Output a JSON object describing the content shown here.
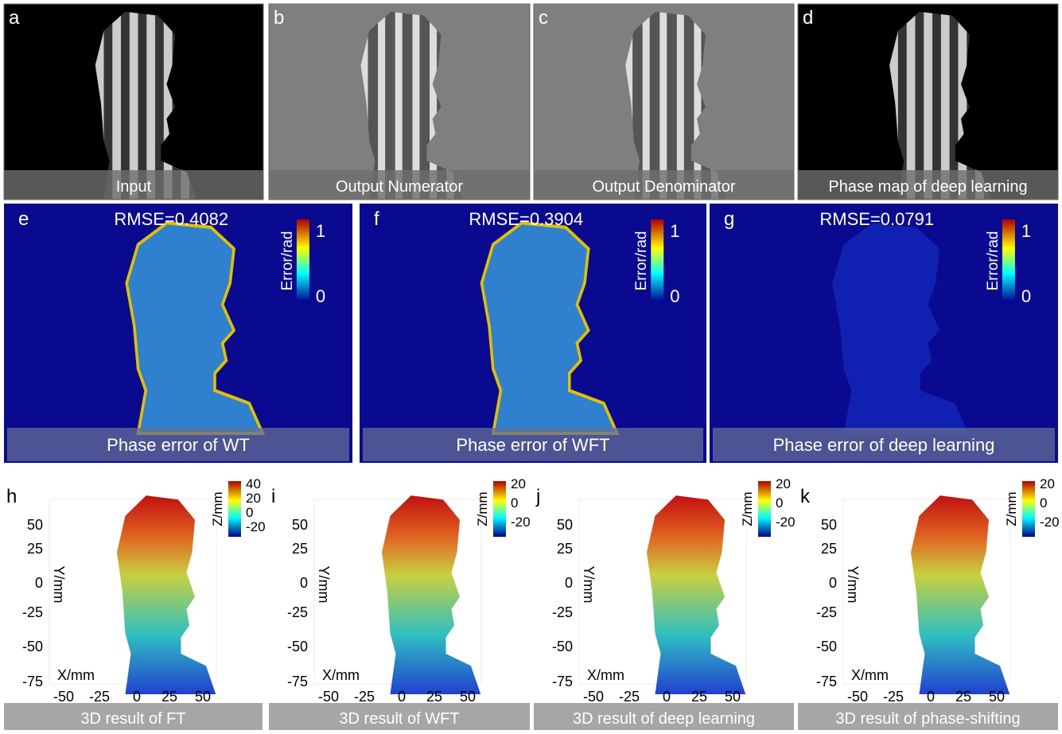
{
  "row1": [
    {
      "letter": "a",
      "caption": "Input"
    },
    {
      "letter": "b",
      "caption": "Output Numerator"
    },
    {
      "letter": "c",
      "caption": "Output Denominator"
    },
    {
      "letter": "d",
      "caption": "Phase map of deep learning"
    }
  ],
  "row2": [
    {
      "letter": "e",
      "rmse": "RMSE=0.4082",
      "caption": "Phase error of WT",
      "colorbar_label": "Error/rad",
      "colorbar_ticks": [
        "1",
        "0"
      ]
    },
    {
      "letter": "f",
      "rmse": "RMSE=0.3904",
      "caption": "Phase error of WFT",
      "colorbar_label": "Error/rad",
      "colorbar_ticks": [
        "1",
        "0"
      ]
    },
    {
      "letter": "g",
      "rmse": "RMSE=0.0791",
      "caption": "Phase error of deep learning",
      "colorbar_label": "Error/rad",
      "colorbar_ticks": [
        "1",
        "0"
      ]
    }
  ],
  "row3": [
    {
      "letter": "h",
      "caption": "3D result of FT",
      "colorbar_label": "Z/mm",
      "colorbar_ticks": [
        "40",
        "20",
        "0",
        "-20"
      ],
      "y_label": "Y/mm",
      "x_label": "X/mm",
      "yticks": [
        "50",
        "25",
        "0",
        "-25",
        "-50",
        "-75"
      ],
      "xticks": [
        "-50",
        "-25",
        "0",
        "25",
        "50"
      ]
    },
    {
      "letter": "i",
      "caption": "3D result of WFT",
      "colorbar_label": "Z/mm",
      "colorbar_ticks": [
        "20",
        "0",
        "-20"
      ],
      "y_label": "Y/mm",
      "x_label": "X/mm",
      "yticks": [
        "50",
        "25",
        "0",
        "-25",
        "-50",
        "-75"
      ],
      "xticks": [
        "-50",
        "-25",
        "0",
        "25",
        "50"
      ]
    },
    {
      "letter": "j",
      "caption": "3D result of deep learning",
      "colorbar_label": "Z/mm",
      "colorbar_ticks": [
        "20",
        "0",
        "-20"
      ],
      "y_label": "Y/mm",
      "x_label": "X/mm",
      "yticks": [
        "50",
        "25",
        "0",
        "-25",
        "-50",
        "-75"
      ],
      "xticks": [
        "-50",
        "-25",
        "0",
        "25",
        "50"
      ]
    },
    {
      "letter": "k",
      "caption": "3D result of phase-shifting",
      "colorbar_label": "Z/mm",
      "colorbar_ticks": [
        "20",
        "0",
        "-20"
      ],
      "y_label": "Y/mm",
      "x_label": "X/mm",
      "yticks": [
        "50",
        "25",
        "0",
        "-25",
        "-50",
        "-75"
      ],
      "xticks": [
        "-50",
        "-25",
        "0",
        "25",
        "50"
      ]
    }
  ]
}
